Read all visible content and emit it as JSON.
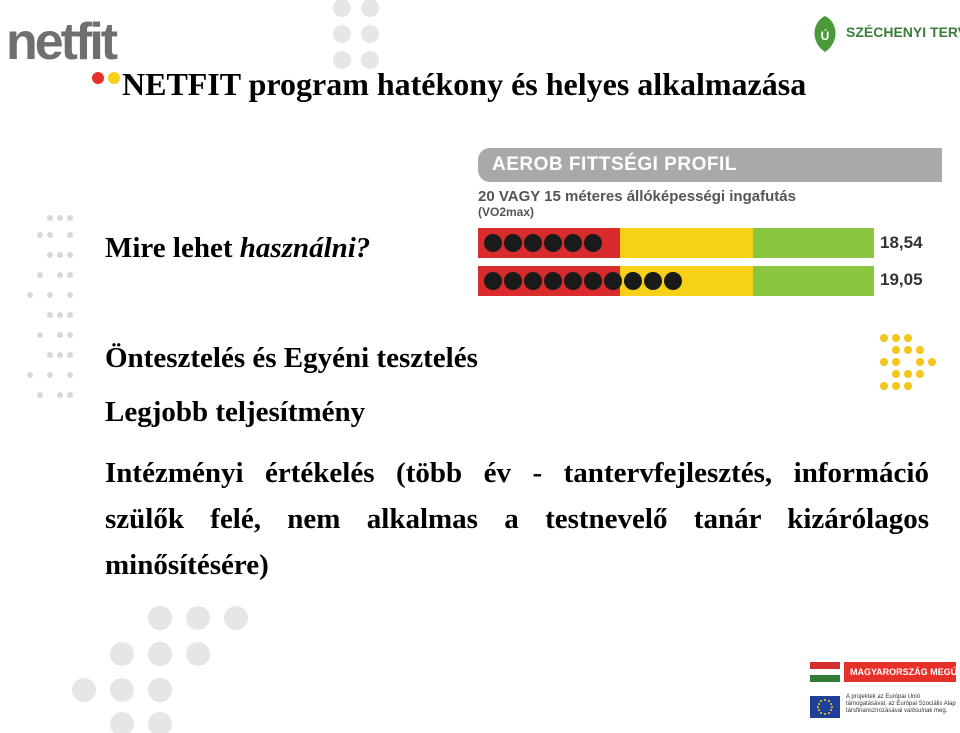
{
  "header": {
    "logo_text": "netfit",
    "partner_logo": "SZÉCHENYI TERV",
    "title": "NETFIT program hatékony és helyes alkalmazása"
  },
  "question": {
    "plain": "Mire lehet ",
    "italic": "használni?"
  },
  "profile": {
    "banner": "AEROB FITTSÉGI PROFIL",
    "subtitle": "20 VAGY 15 méteres állóképességi ingafutás",
    "unit": "(VO2max)",
    "rows": [
      {
        "value": "18,54",
        "dots": 6
      },
      {
        "value": "19,05",
        "dots": 10
      }
    ]
  },
  "bullets": [
    "Öntesztelés és Egyéni tesztelés",
    "Legjobb teljesítmény",
    "Intézményi értékelés (több év - tantervfejlesztés, információ szülők felé, nem alkalmas a testnevelő tanár kizárólagos minősítésére)"
  ],
  "footer": {
    "banner": "MAGYARORSZÁG MEGÚJUL",
    "eu_text": "A projektek az Európai Unió támogatásával, az Európai Szociális Alap társfinanszírozásával valósulnak meg."
  },
  "colors": {
    "red": "#d92b2b",
    "yellow": "#f7d117",
    "green": "#8bc640",
    "gray_banner": "#a9a9a9"
  },
  "icons": [
    "dot-pattern-icon",
    "szechenyi-leaf-icon",
    "hungarian-flag-icon",
    "eu-flag-icon"
  ]
}
